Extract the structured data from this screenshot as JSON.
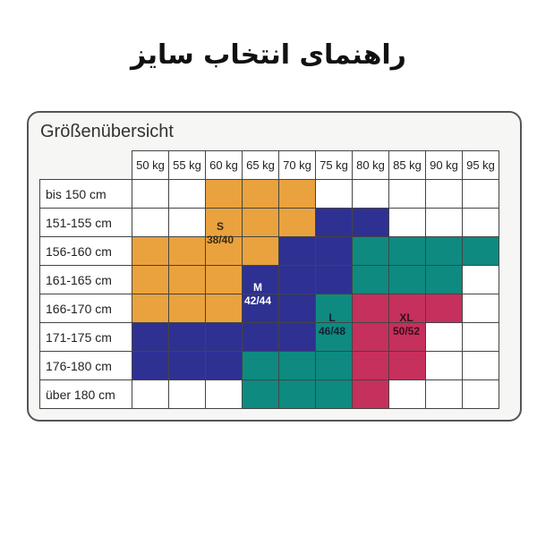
{
  "title": "راهنمای انتخاب سایز",
  "card_title": "Größenübersicht",
  "colors": {
    "S": "#E9A23E",
    "M": "#2E3192",
    "L": "#0E8A80",
    "XL": "#C5305C",
    "empty": "#ffffff"
  },
  "weights": [
    "50 kg",
    "55 kg",
    "60 kg",
    "65 kg",
    "70 kg",
    "75 kg",
    "80 kg",
    "85 kg",
    "90 kg",
    "95 kg"
  ],
  "heights": [
    "bis 150 cm",
    "151-155 cm",
    "156-160 cm",
    "161-165 cm",
    "166-170 cm",
    "171-175 cm",
    "176-180 cm",
    "über 180 cm"
  ],
  "size_grid": [
    [
      "",
      "",
      "S",
      "S",
      "S",
      "",
      "",
      "",
      "",
      ""
    ],
    [
      "",
      "",
      "S",
      "S",
      "S",
      "M",
      "M",
      "",
      "",
      ""
    ],
    [
      "S",
      "S",
      "S",
      "S",
      "M",
      "M",
      "L",
      "L",
      "L",
      "L"
    ],
    [
      "S",
      "S",
      "S",
      "M",
      "M",
      "M",
      "L",
      "L",
      "L",
      ""
    ],
    [
      "S",
      "S",
      "S",
      "M",
      "M",
      "L",
      "XL",
      "XL",
      "XL",
      ""
    ],
    [
      "M",
      "M",
      "M",
      "M",
      "M",
      "L",
      "XL",
      "XL",
      "",
      ""
    ],
    [
      "M",
      "M",
      "M",
      "L",
      "L",
      "L",
      "XL",
      "XL",
      "",
      ""
    ],
    [
      "",
      "",
      "",
      "L",
      "L",
      "L",
      "XL",
      "",
      "",
      ""
    ]
  ],
  "size_labels": {
    "S": {
      "name": "S",
      "eu": "38/40"
    },
    "M": {
      "name": "M",
      "eu": "42/44"
    },
    "L": {
      "name": "L",
      "eu": "46/48"
    },
    "XL": {
      "name": "XL",
      "eu": "50/52"
    }
  }
}
